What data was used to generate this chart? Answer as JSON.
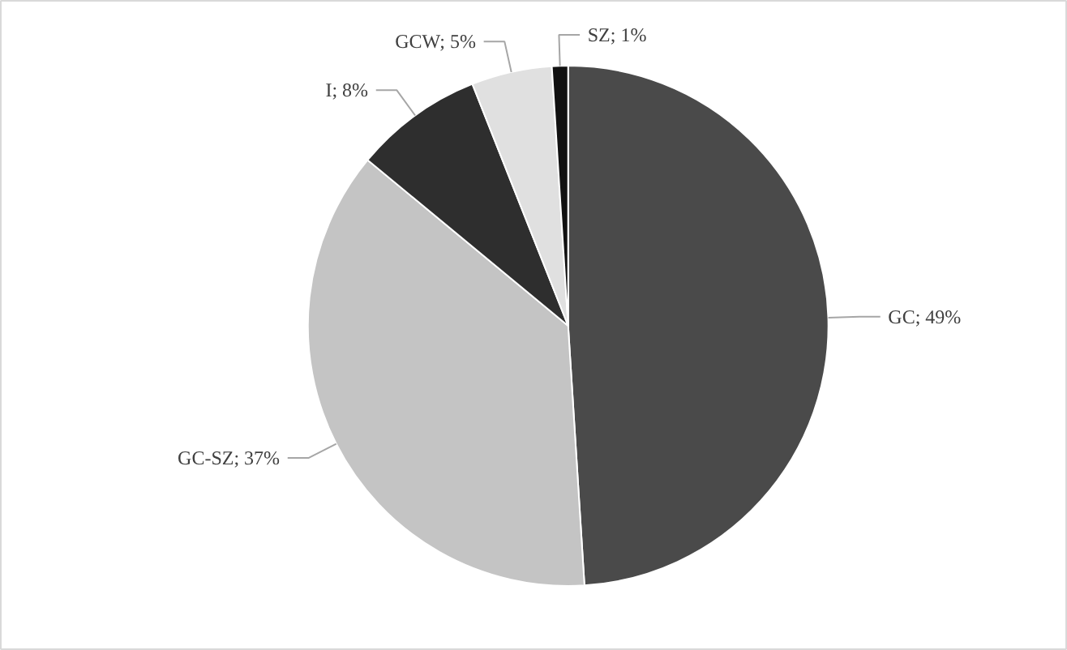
{
  "chart_data": {
    "type": "pie",
    "categories": [
      "GC",
      "GC-SZ",
      "I",
      "GCW",
      "SZ"
    ],
    "values": [
      49,
      37,
      8,
      5,
      1
    ],
    "colors": [
      "#4a4a4a",
      "#c4c4c4",
      "#2e2e2e",
      "#e0e0e0",
      "#111111"
    ],
    "value_labels": [
      "49%",
      "37%",
      "8%",
      "5%",
      "1%"
    ],
    "legend": false
  }
}
